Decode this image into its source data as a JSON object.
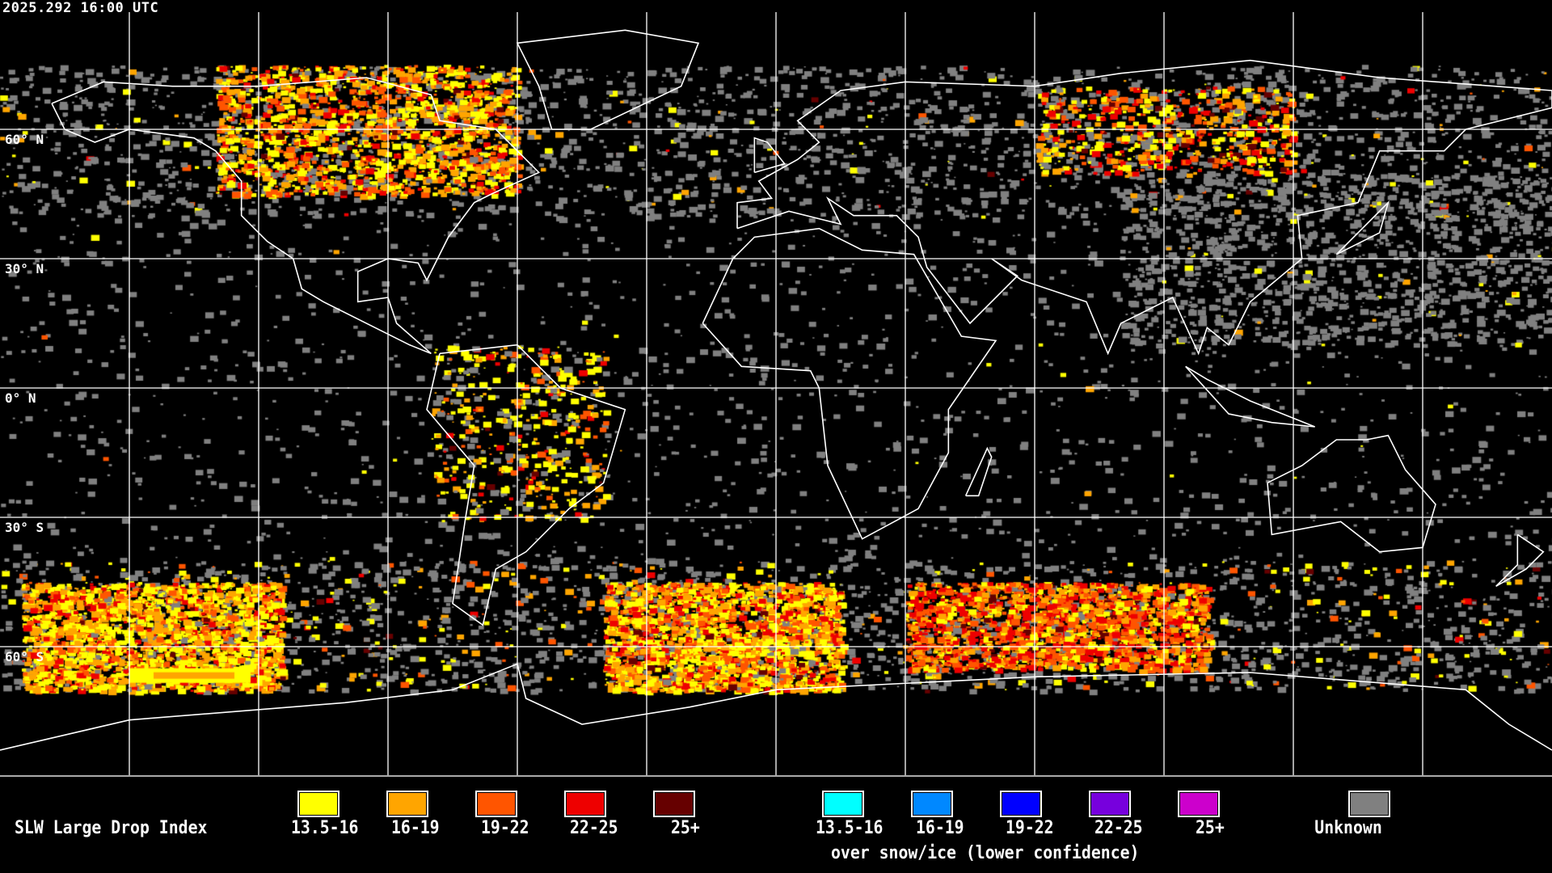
{
  "title": "2025.292 16:00 UTC",
  "lat_labels": [
    "60° N",
    "30° N",
    "0° N",
    "30° S",
    "60° S"
  ],
  "map": {
    "projection": "equirectangular",
    "graticule_deg": 30,
    "coastline_color": "#ffffff",
    "grid_color": "#ffffff"
  },
  "legend": {
    "title": "SLW Large Drop Index",
    "main": [
      {
        "label": "13.5-16",
        "color": "#ffff00"
      },
      {
        "label": "16-19",
        "color": "#ffa500"
      },
      {
        "label": "19-22",
        "color": "#ff5500"
      },
      {
        "label": "22-25",
        "color": "#ee0000"
      },
      {
        "label": "25+",
        "color": "#660000"
      }
    ],
    "snow_ice": [
      {
        "label": "13.5-16",
        "color": "#00ffff"
      },
      {
        "label": "16-19",
        "color": "#0088ff"
      },
      {
        "label": "19-22",
        "color": "#0000ff"
      },
      {
        "label": "22-25",
        "color": "#7700dd"
      },
      {
        "label": "25+",
        "color": "#cc00cc"
      }
    ],
    "snow_ice_caption": "over snow/ice (lower confidence)",
    "unknown": {
      "label": "Unknown",
      "color": "#808080"
    }
  }
}
